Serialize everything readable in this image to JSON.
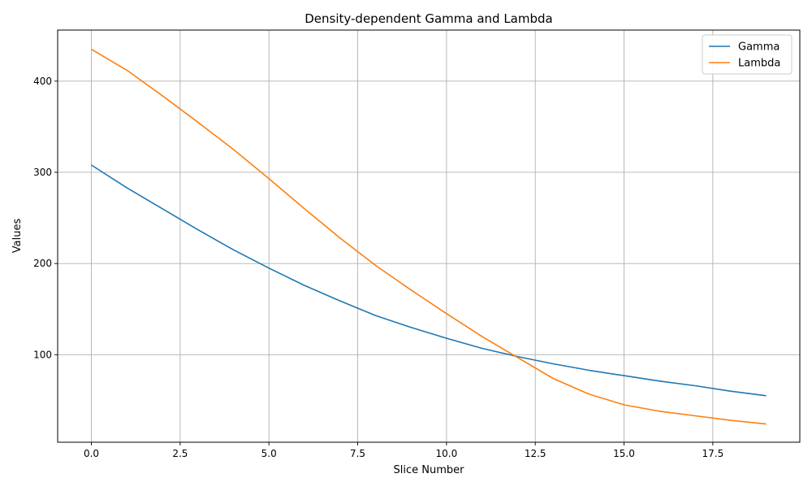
{
  "chart_data": {
    "type": "line",
    "title": "Density-dependent Gamma and Lambda",
    "xlabel": "Slice Number",
    "ylabel": "Values",
    "xlim": [
      -0.95,
      19.95
    ],
    "ylim": [
      4,
      456
    ],
    "xticks": [
      0,
      2.5,
      5,
      7.5,
      10,
      12.5,
      15,
      17.5
    ],
    "xtick_labels": [
      "0.0",
      "2.5",
      "5.0",
      "7.5",
      "10.0",
      "12.5",
      "15.0",
      "17.5"
    ],
    "yticks": [
      100,
      200,
      300,
      400
    ],
    "ytick_labels": [
      "100",
      "200",
      "300",
      "400"
    ],
    "grid": true,
    "legend_position": "top-right",
    "x": [
      0,
      1,
      2,
      3,
      4,
      5,
      6,
      7,
      8,
      9,
      10,
      11,
      12,
      13,
      14,
      15,
      16,
      17,
      18,
      19
    ],
    "series": [
      {
        "name": "Gamma",
        "color": "#1f77b4",
        "values": [
          308,
          283,
          260,
          237,
          215,
          195,
          176,
          159,
          143,
          130,
          118,
          107,
          98,
          90,
          83,
          77,
          71,
          66,
          60,
          55
        ]
      },
      {
        "name": "Lambda",
        "color": "#ff7f0e",
        "values": [
          435,
          412,
          384,
          355,
          325,
          293,
          260,
          228,
          198,
          171,
          145,
          120,
          97,
          74,
          57,
          45,
          38,
          33,
          28,
          24
        ]
      }
    ]
  }
}
